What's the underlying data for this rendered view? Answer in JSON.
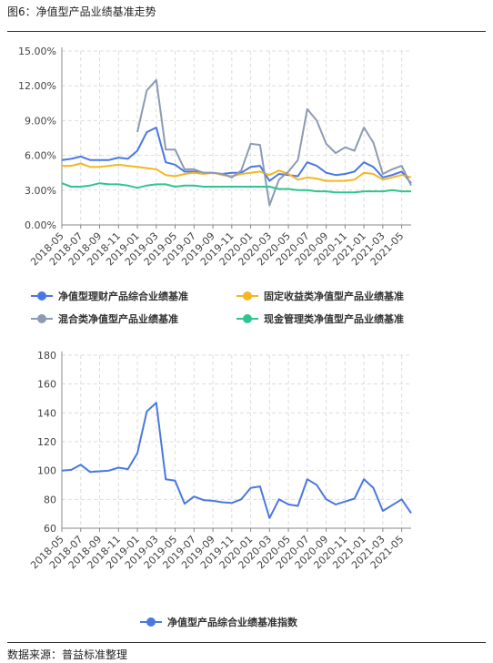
{
  "header": {
    "title": "图6：净值型产品业绩基准走势"
  },
  "footer": {
    "source": "数据来源：普益标准整理"
  },
  "colors": {
    "composite": "#4a78e0",
    "fixed": "#f3b723",
    "mixed": "#8c9ab4",
    "cash": "#2fc58e",
    "index": "#4a78e0",
    "grid": "#dddddd",
    "axis": "#888888"
  },
  "chart_data": [
    {
      "type": "line",
      "x": [
        "2018-05",
        "2018-06",
        "2018-07",
        "2018-08",
        "2018-09",
        "2018-10",
        "2018-11",
        "2018-12",
        "2019-01",
        "2019-02",
        "2019-03",
        "2019-04",
        "2019-05",
        "2019-06",
        "2019-07",
        "2019-08",
        "2019-09",
        "2019-10",
        "2019-11",
        "2019-12",
        "2020-01",
        "2020-02",
        "2020-03",
        "2020-04",
        "2020-05",
        "2020-06",
        "2020-07",
        "2020-08",
        "2020-09",
        "2020-10",
        "2020-11",
        "2020-12",
        "2021-01",
        "2021-02",
        "2021-03",
        "2021-04",
        "2021-05",
        "2021-06"
      ],
      "x_tick_labels": [
        "2018-05",
        "2018-07",
        "2018-09",
        "2018-11",
        "2019-01",
        "2019-03",
        "2019-05",
        "2019-07",
        "2019-09",
        "2019-11",
        "2020-01",
        "2020-03",
        "2020-05",
        "2020-07",
        "2020-09",
        "2020-11",
        "2021-01",
        "2021-03",
        "2021-05"
      ],
      "y_tick_labels": [
        "0.00%",
        "3.00%",
        "6.00%",
        "9.00%",
        "12.00%",
        "15.00%"
      ],
      "ylim": [
        0,
        15
      ],
      "grid": true,
      "legend_position": "bottom",
      "series": [
        {
          "name": "净值型理财产品综合业绩基准",
          "key": "composite",
          "values": [
            5.6,
            5.7,
            5.9,
            5.6,
            5.6,
            5.6,
            5.8,
            5.7,
            6.4,
            8.0,
            8.4,
            5.4,
            5.2,
            4.6,
            4.6,
            4.5,
            4.5,
            4.4,
            4.5,
            4.5,
            5.0,
            5.1,
            3.8,
            4.4,
            4.3,
            4.2,
            5.4,
            5.1,
            4.5,
            4.3,
            4.4,
            4.6,
            5.4,
            5.0,
            4.1,
            4.3,
            4.6,
            3.6
          ]
        },
        {
          "name": "固定收益类净值型产品业绩基准",
          "key": "fixed",
          "values": [
            5.1,
            5.1,
            5.3,
            5.0,
            5.0,
            5.1,
            5.2,
            5.1,
            5.0,
            4.9,
            4.8,
            4.3,
            4.2,
            4.4,
            4.5,
            4.4,
            4.5,
            4.3,
            4.2,
            4.4,
            4.5,
            4.6,
            4.3,
            4.7,
            4.4,
            3.9,
            4.1,
            4.0,
            3.8,
            3.8,
            3.8,
            3.9,
            4.5,
            4.4,
            3.9,
            4.1,
            4.3,
            4.1
          ]
        },
        {
          "name": "混合类净值型产品业绩基准",
          "key": "mixed",
          "values": [
            null,
            null,
            null,
            null,
            null,
            null,
            null,
            null,
            8.0,
            11.6,
            12.5,
            6.5,
            6.5,
            4.8,
            4.8,
            4.5,
            4.5,
            4.4,
            4.1,
            4.7,
            7.0,
            6.9,
            1.7,
            3.9,
            4.6,
            5.6,
            10.0,
            9.0,
            7.0,
            6.2,
            6.7,
            6.4,
            8.4,
            7.1,
            4.4,
            4.8,
            5.1,
            3.4
          ]
        },
        {
          "name": "现金管理类净值型产品业绩基准",
          "key": "cash",
          "values": [
            3.6,
            3.3,
            3.3,
            3.4,
            3.6,
            3.5,
            3.5,
            3.4,
            3.2,
            3.4,
            3.5,
            3.5,
            3.3,
            3.4,
            3.4,
            3.3,
            3.3,
            3.3,
            3.3,
            3.3,
            3.3,
            3.3,
            3.3,
            3.1,
            3.1,
            3.0,
            3.0,
            2.9,
            2.9,
            2.8,
            2.8,
            2.8,
            2.9,
            2.9,
            2.9,
            3.0,
            2.9,
            2.9
          ]
        }
      ]
    },
    {
      "type": "line",
      "x": [
        "2018-05",
        "2018-06",
        "2018-07",
        "2018-08",
        "2018-09",
        "2018-10",
        "2018-11",
        "2018-12",
        "2019-01",
        "2019-02",
        "2019-03",
        "2019-04",
        "2019-05",
        "2019-06",
        "2019-07",
        "2019-08",
        "2019-09",
        "2019-10",
        "2019-11",
        "2019-12",
        "2020-01",
        "2020-02",
        "2020-03",
        "2020-04",
        "2020-05",
        "2020-06",
        "2020-07",
        "2020-08",
        "2020-09",
        "2020-10",
        "2020-11",
        "2020-12",
        "2021-01",
        "2021-02",
        "2021-03",
        "2021-04",
        "2021-05",
        "2021-06"
      ],
      "x_tick_labels": [
        "2018-05",
        "2018-07",
        "2018-09",
        "2018-11",
        "2019-01",
        "2019-03",
        "2019-05",
        "2019-07",
        "2019-09",
        "2019-11",
        "2020-01",
        "2020-03",
        "2020-05",
        "2020-07",
        "2020-09",
        "2020-11",
        "2021-01",
        "2021-03",
        "2021-05"
      ],
      "y_tick_labels": [
        "60",
        "80",
        "100",
        "120",
        "140",
        "160",
        "180"
      ],
      "ylim": [
        60,
        180
      ],
      "grid": true,
      "legend_position": "bottom",
      "series": [
        {
          "name": "净值型产品综合业绩基准指数",
          "key": "index",
          "values": [
            100,
            100.5,
            104,
            99,
            99.5,
            100,
            102,
            101,
            112,
            141,
            147,
            94,
            93,
            77,
            82,
            79.5,
            79,
            78,
            77.5,
            80,
            88,
            89,
            67,
            80,
            76.5,
            75.5,
            94,
            90,
            80,
            76.5,
            78.5,
            80.5,
            94,
            88,
            72,
            76,
            80,
            70.5
          ]
        }
      ]
    }
  ]
}
